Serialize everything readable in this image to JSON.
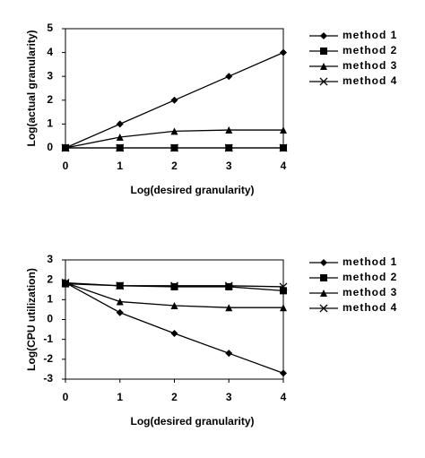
{
  "chart_data": [
    {
      "type": "line",
      "xlabel": "Log(desired granularity)",
      "ylabel": "Log(actual granularity)",
      "x": [
        0,
        1,
        2,
        3,
        4
      ],
      "xlim": [
        0,
        4
      ],
      "xticks": [
        0,
        1,
        2,
        3,
        4
      ],
      "ylim": [
        0,
        5
      ],
      "yticks": [
        0,
        1,
        2,
        3,
        4,
        5
      ],
      "legend": "right",
      "series": [
        {
          "name": "method 1",
          "color": "#000000",
          "marker": "diamond",
          "values": [
            0,
            1,
            2,
            3,
            4
          ]
        },
        {
          "name": "method 2",
          "color": "#000000",
          "marker": "square",
          "values": [
            0,
            0,
            0,
            0,
            0
          ]
        },
        {
          "name": "method 3",
          "color": "#000000",
          "marker": "triangle",
          "values": [
            0,
            0.45,
            0.7,
            0.75,
            0.75
          ]
        },
        {
          "name": "method 4",
          "color": "#000000",
          "marker": "x",
          "values": [
            0,
            0,
            0,
            0,
            0
          ]
        }
      ]
    },
    {
      "type": "line",
      "xlabel": "Log(desired granularity)",
      "ylabel": "Log(CPU utilization)",
      "x": [
        0,
        1,
        2,
        3,
        4
      ],
      "xlim": [
        0,
        4
      ],
      "xticks": [
        0,
        1,
        2,
        3,
        4
      ],
      "ylim": [
        -3,
        3
      ],
      "yticks": [
        -3,
        -2,
        -1,
        0,
        1,
        2,
        3
      ],
      "legend": "right",
      "series": [
        {
          "name": "method 1",
          "color": "#000000",
          "marker": "diamond",
          "values": [
            1.85,
            0.35,
            -0.7,
            -1.7,
            -2.7
          ]
        },
        {
          "name": "method 2",
          "color": "#000000",
          "marker": "square",
          "values": [
            1.8,
            1.7,
            1.65,
            1.65,
            1.45
          ]
        },
        {
          "name": "method 3",
          "color": "#000000",
          "marker": "triangle",
          "values": [
            1.85,
            0.9,
            0.7,
            0.6,
            0.6
          ]
        },
        {
          "name": "method 4",
          "color": "#000000",
          "marker": "x",
          "values": [
            1.85,
            1.7,
            1.7,
            1.7,
            1.65
          ]
        }
      ]
    }
  ]
}
